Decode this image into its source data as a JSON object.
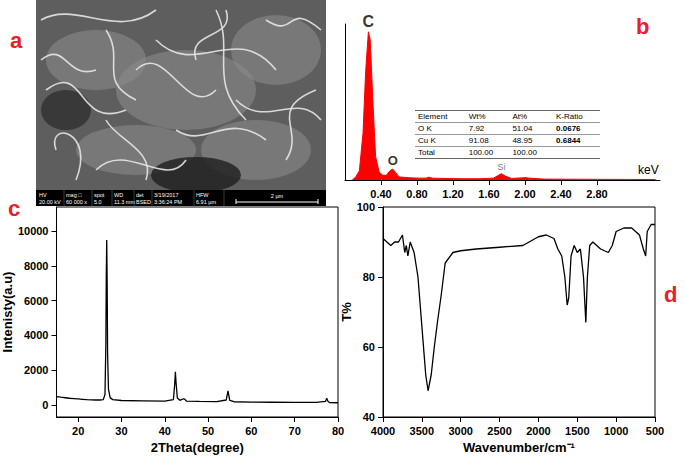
{
  "micrograph": {
    "panel": "a",
    "info": [
      {
        "top": "HV",
        "bottom": "20.00 kV"
      },
      {
        "top": "mag □",
        "bottom": "60 000 x"
      },
      {
        "top": "spot",
        "bottom": "5.0"
      },
      {
        "top": "WD",
        "bottom": "11.3 mm"
      },
      {
        "top": "det",
        "bottom": "BSED"
      },
      {
        "top": "3/19/2017",
        "bottom": "3:36:24 PM"
      },
      {
        "top": "HFW",
        "bottom": "6.91 µm"
      }
    ],
    "scale_bar": "2 µm"
  },
  "chart_data": [
    {
      "type": "line",
      "panel": "b",
      "x_label": "keV",
      "color": "#ff0000",
      "grid": false,
      "tick_labels": "x",
      "x": [
        0.08,
        0.12,
        0.16,
        0.2,
        0.23,
        0.26,
        0.28,
        0.31,
        0.34,
        0.38,
        0.42,
        0.46,
        0.5,
        0.53,
        0.56,
        0.6,
        0.7,
        0.8,
        0.9,
        0.93,
        0.97,
        1.1,
        1.3,
        1.5,
        1.65,
        1.72,
        1.74,
        1.78,
        1.85,
        2.0,
        2.05,
        2.2,
        2.5,
        3.0,
        3.45
      ],
      "values": [
        0,
        2,
        6,
        30,
        70,
        95,
        90,
        50,
        15,
        5,
        3,
        3,
        6,
        7,
        5,
        2,
        1.5,
        1.2,
        1.2,
        1.8,
        1.2,
        1,
        0.8,
        0.8,
        1.2,
        3.5,
        4,
        2.5,
        1,
        1.5,
        1.2,
        0.6,
        0.5,
        0.4,
        0.3
      ],
      "xlim": [
        0,
        3.5
      ],
      "xticks": [
        {
          "value": 0.4,
          "label": "0.40"
        },
        {
          "value": 0.8,
          "label": "0.80"
        },
        {
          "value": 1.2,
          "label": "1.20"
        },
        {
          "value": 1.6,
          "label": "1.60"
        },
        {
          "value": 2.0,
          "label": "2.00"
        },
        {
          "value": 2.4,
          "label": "2.40"
        },
        {
          "value": 2.8,
          "label": "2.80"
        }
      ],
      "ylim": [
        0,
        100
      ],
      "annotations": [
        {
          "text": "C",
          "x": 0.26,
          "y": 95
        },
        {
          "text": "O",
          "x": 0.53,
          "y": 7
        },
        {
          "text": "Si",
          "x": 1.74,
          "y": 4
        }
      ],
      "table": {
        "columns": [
          "Element",
          "Wt%",
          "At%",
          "K-Ratio"
        ],
        "rows": [
          [
            "O K",
            "7.92",
            "51.04",
            "0.0676"
          ],
          [
            "Cu K",
            "91.08",
            "48.95",
            "0.6844"
          ],
          [
            "Total",
            "100.00",
            "100.00",
            ""
          ]
        ]
      }
    },
    {
      "type": "line",
      "panel": "c",
      "x_label": "2Theta(degree)",
      "y_label": "Intenisty(a.u)",
      "color": "#000000",
      "grid": false,
      "x": [
        15,
        16,
        17,
        18,
        19,
        20,
        21,
        22,
        23,
        24,
        25,
        25.8,
        26.2,
        26.4,
        26.5,
        26.6,
        26.7,
        26.8,
        27.0,
        27.4,
        28,
        30,
        35,
        40,
        42.0,
        42.3,
        42.45,
        42.6,
        42.9,
        43.5,
        44.3,
        44.6,
        45,
        48,
        52,
        54.2,
        54.6,
        55.0,
        56,
        60,
        65,
        70,
        75,
        77.1,
        77.4,
        77.7,
        78,
        80
      ],
      "values": [
        480,
        440,
        410,
        380,
        360,
        340,
        320,
        300,
        290,
        280,
        280,
        300,
        600,
        3500,
        7500,
        9500,
        7000,
        3000,
        900,
        400,
        300,
        250,
        230,
        210,
        300,
        1200,
        1900,
        1300,
        400,
        260,
        350,
        330,
        220,
        200,
        190,
        280,
        800,
        260,
        180,
        160,
        150,
        140,
        140,
        200,
        380,
        200,
        130,
        120
      ],
      "xlim": [
        15,
        80
      ],
      "xticks": [
        20,
        30,
        40,
        50,
        60,
        70,
        80
      ],
      "ylim": [
        -700,
        11400
      ],
      "yticks": [
        0,
        2000,
        4000,
        6000,
        8000,
        10000
      ]
    },
    {
      "type": "line",
      "panel": "d",
      "x_label": "Wavenumber/cm⁻¹",
      "y_label": "T%",
      "color": "#000000",
      "grid": false,
      "x": [
        4000,
        3950,
        3900,
        3850,
        3800,
        3750,
        3720,
        3700,
        3680,
        3650,
        3600,
        3550,
        3500,
        3450,
        3420,
        3380,
        3340,
        3300,
        3250,
        3200,
        3100,
        3000,
        2800,
        2500,
        2200,
        2000,
        1900,
        1800,
        1750,
        1700,
        1660,
        1630,
        1610,
        1580,
        1540,
        1500,
        1460,
        1420,
        1390,
        1370,
        1340,
        1300,
        1200,
        1100,
        1050,
        1000,
        900,
        800,
        700,
        650,
        620,
        600,
        550,
        500
      ],
      "values": [
        91,
        90,
        89,
        90,
        90,
        92,
        87,
        89,
        86,
        90,
        87,
        80,
        66,
        52,
        47.5,
        52,
        60,
        67,
        75,
        84,
        87,
        87.5,
        88,
        88.5,
        89,
        91.5,
        92,
        91,
        88,
        86,
        80,
        72,
        74,
        86,
        89,
        87,
        88,
        80,
        67,
        80,
        89,
        90,
        88,
        87,
        89,
        93,
        94,
        94,
        92,
        88,
        86,
        93,
        95,
        95
      ],
      "xlim": [
        4000,
        500
      ],
      "xticks": [
        4000,
        3500,
        3000,
        2500,
        2000,
        1500,
        1000,
        500
      ],
      "ylim": [
        40,
        100
      ],
      "yticks": [
        40,
        60,
        80,
        100
      ]
    }
  ]
}
